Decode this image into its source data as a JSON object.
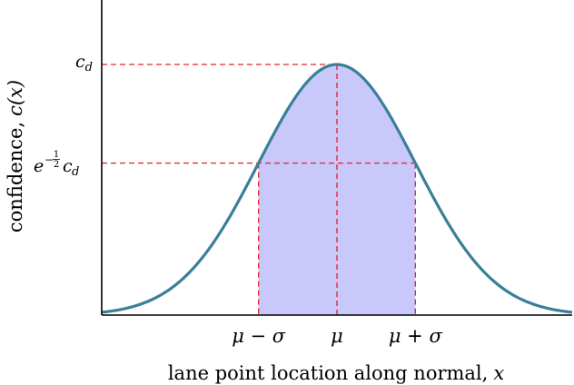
{
  "chart_data": {
    "type": "area",
    "curve": "gaussian",
    "mu": 0,
    "sigma": 1,
    "c_d": 1,
    "xlim": [
      -3,
      3
    ],
    "ylim": [
      0,
      1.25
    ],
    "shaded_region": [
      -1,
      1
    ],
    "ylabel": "confidence, c(x)",
    "xlabel": "lane point location along normal, x",
    "x_ticks": [
      {
        "x": -1,
        "label": "μ − σ"
      },
      {
        "x": 0,
        "label": "μ"
      },
      {
        "x": 1,
        "label": "μ + σ"
      }
    ],
    "y_ticks": [
      {
        "y": 1,
        "label": "c_d"
      },
      {
        "y": 0.6065,
        "label": "e^(−1/2) c_d"
      }
    ],
    "colors": {
      "curve": "#3a7f98",
      "fill": "#c8c8fb",
      "guides": "#e8202a",
      "axes": "#000000"
    }
  },
  "text": {
    "ylabel_word": "confidence,",
    "ylabel_math": "c(x)",
    "xlabel_word": "lane point location along normal,",
    "xlabel_math": "x",
    "cd_base": "c",
    "cd_sub": "d",
    "exp_e": "e",
    "exp_minus": "−",
    "exp_num": "1",
    "exp_den": "2",
    "xtick_left": "μ − σ",
    "xtick_mid": "μ",
    "xtick_right": "μ + σ"
  }
}
